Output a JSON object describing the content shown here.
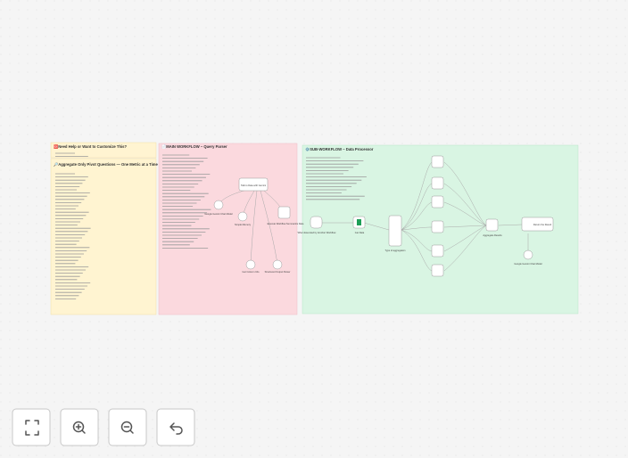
{
  "notes": [
    {
      "title": "🆘Need Help or Want to Customize This?"
    },
    {
      "title": "🔎Aggregate Only Pivot Questions — One Metric at a Time"
    },
    {
      "title": "📄MAIN WORKFLOW – Query Parser"
    },
    {
      "title": "⚙️SUB-WORKFLOW – Data Processor"
    }
  ],
  "nodes": [
    {
      "label": "Talk to Data with Gemini"
    },
    {
      "label": "Google Gemini Chat Model"
    },
    {
      "label": "Simple Memory"
    },
    {
      "label": "Execute Workflow Summarize Data"
    },
    {
      "label": "Get Column Info"
    },
    {
      "label": "Structured Output Parser"
    },
    {
      "label": "When Executed by Another Workflow"
    },
    {
      "label": "Get Data"
    },
    {
      "label": "Type of aggregation"
    },
    {
      "label": "Aggregate Results"
    },
    {
      "label": "Return the Result"
    },
    {
      "label": "Google Gemini Chat Model"
    }
  ]
}
